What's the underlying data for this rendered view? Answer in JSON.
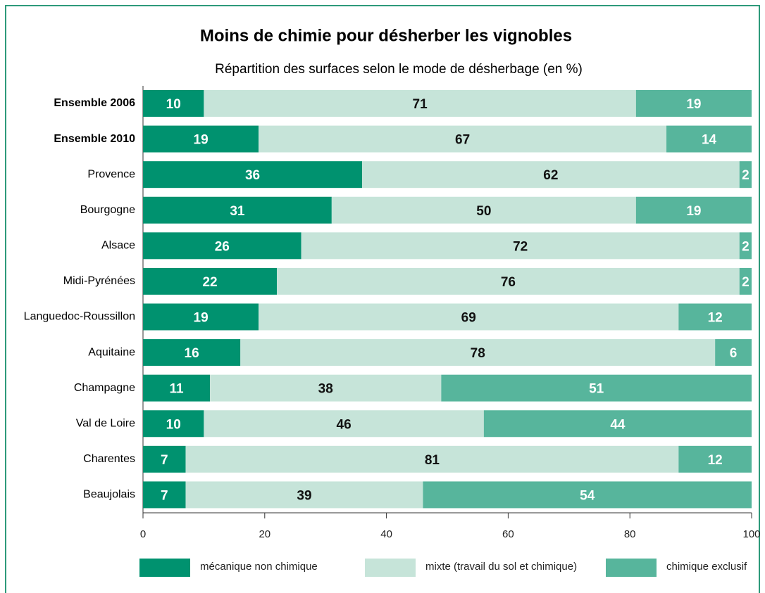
{
  "chart_data": {
    "type": "stacked_bar_horizontal",
    "title": "Moins de chimie pour désherber les vignobles",
    "subtitle": "Répartition des surfaces selon le mode de désherbage (en %)",
    "categories": [
      "Ensemble 2006",
      "Ensemble 2010",
      "Provence",
      "Bourgogne",
      "Alsace",
      "Midi-Pyrénées",
      "Languedoc-Roussillon",
      "Aquitaine",
      "Champagne",
      "Val de Loire",
      "Charentes",
      "Beaujolais"
    ],
    "series": [
      {
        "name": "mécanique non chimique",
        "color": "#00926f",
        "values": [
          10,
          19,
          36,
          31,
          26,
          22,
          19,
          16,
          11,
          10,
          7,
          7
        ]
      },
      {
        "name": "mixte (travail du sol et chimique)",
        "color": "#c6e4d9",
        "values": [
          71,
          67,
          62,
          50,
          72,
          76,
          69,
          78,
          38,
          46,
          81,
          39
        ]
      },
      {
        "name": "chimique exclusif",
        "color": "#57b59c",
        "values": [
          19,
          14,
          2,
          19,
          2,
          2,
          12,
          6,
          51,
          44,
          12,
          54
        ]
      }
    ],
    "xlim": [
      0,
      100
    ],
    "xticks": [
      0,
      20,
      40,
      60,
      80,
      100
    ]
  }
}
